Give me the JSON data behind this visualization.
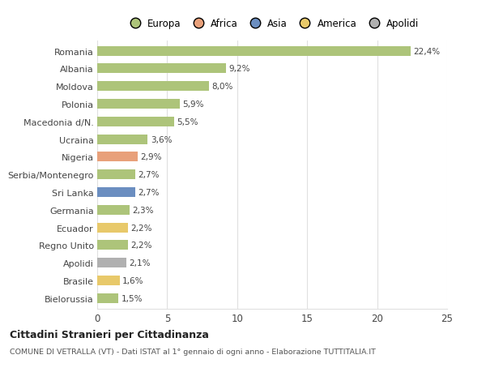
{
  "countries": [
    "Romania",
    "Albania",
    "Moldova",
    "Polonia",
    "Macedonia d/N.",
    "Ucraina",
    "Nigeria",
    "Serbia/Montenegro",
    "Sri Lanka",
    "Germania",
    "Ecuador",
    "Regno Unito",
    "Apolidi",
    "Brasile",
    "Bielorussia"
  ],
  "values": [
    22.4,
    9.2,
    8.0,
    5.9,
    5.5,
    3.6,
    2.9,
    2.7,
    2.7,
    2.3,
    2.2,
    2.2,
    2.1,
    1.6,
    1.5
  ],
  "labels": [
    "22,4%",
    "9,2%",
    "8,0%",
    "5,9%",
    "5,5%",
    "3,6%",
    "2,9%",
    "2,7%",
    "2,7%",
    "2,3%",
    "2,2%",
    "2,2%",
    "2,1%",
    "1,6%",
    "1,5%"
  ],
  "categories": [
    "Europa",
    "Africa",
    "Asia",
    "America",
    "Apolidi"
  ],
  "bar_colors": [
    "#adc47a",
    "#adc47a",
    "#adc47a",
    "#adc47a",
    "#adc47a",
    "#adc47a",
    "#e8a07a",
    "#adc47a",
    "#6b8ec0",
    "#adc47a",
    "#e8c96a",
    "#adc47a",
    "#b0b0b0",
    "#e8c96a",
    "#adc47a"
  ],
  "legend_colors": [
    "#adc47a",
    "#e8a07a",
    "#6b8ec0",
    "#e8c96a",
    "#b0b0b0"
  ],
  "background_color": "#ffffff",
  "plot_bg_color": "#ffffff",
  "grid_color": "#e0e0e0",
  "text_color": "#444444",
  "title_main": "Cittadini Stranieri per Cittadinanza",
  "title_sub": "COMUNE DI VETRALLA (VT) - Dati ISTAT al 1° gennaio di ogni anno - Elaborazione TUTTITALIA.IT",
  "xlim": [
    0,
    25
  ],
  "xticks": [
    0,
    5,
    10,
    15,
    20,
    25
  ],
  "bar_height": 0.55
}
